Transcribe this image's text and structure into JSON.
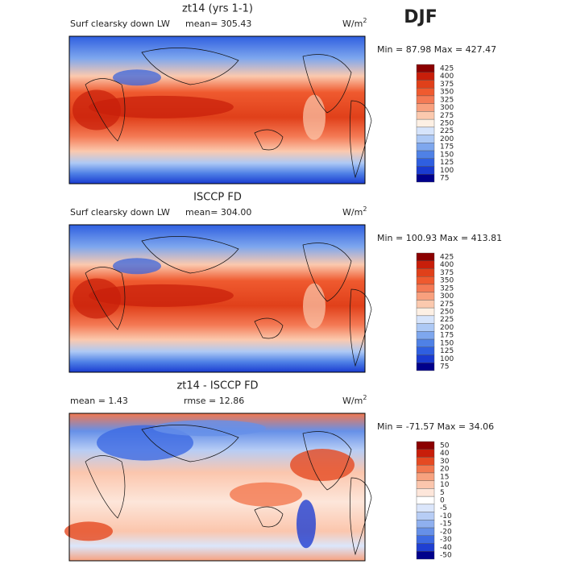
{
  "season": "DJF",
  "panels": [
    {
      "title": "zt14 (yrs 1-1)",
      "field": "Surf clearsky down LW",
      "stat1": "mean= 305.43",
      "stat2": null,
      "units": "W/m",
      "units_sup": "2",
      "minmax": "Min =  87.98 Max = 427.47",
      "colorbar": {
        "levels": [
          425,
          400,
          375,
          350,
          325,
          300,
          275,
          250,
          225,
          200,
          175,
          150,
          125,
          100,
          75
        ],
        "colors": [
          "#8b0000",
          "#c81e0a",
          "#e0401a",
          "#ef5a2f",
          "#f47a55",
          "#f8a07e",
          "#fbc9ae",
          "#fdf0e4",
          "#d6e4fb",
          "#adc9f5",
          "#7ea7ee",
          "#4f81e6",
          "#2f5fe0",
          "#1a3bd0",
          "#00008b"
        ]
      },
      "map": "absolute"
    },
    {
      "title": "ISCCP FD",
      "field": "Surf clearsky down LW",
      "stat1": "mean= 304.00",
      "stat2": null,
      "units": "W/m",
      "units_sup": "2",
      "minmax": "Min = 100.93 Max = 413.81",
      "colorbar": {
        "levels": [
          425,
          400,
          375,
          350,
          325,
          300,
          275,
          250,
          225,
          200,
          175,
          150,
          125,
          100,
          75
        ],
        "colors": [
          "#8b0000",
          "#c81e0a",
          "#e0401a",
          "#ef5a2f",
          "#f47a55",
          "#f8a07e",
          "#fbc9ae",
          "#fdf0e4",
          "#d6e4fb",
          "#adc9f5",
          "#7ea7ee",
          "#4f81e6",
          "#2f5fe0",
          "#1a3bd0",
          "#00008b"
        ]
      },
      "map": "absolute"
    },
    {
      "title": "zt14 - ISCCP FD",
      "field": null,
      "stat1": "mean =    1.43",
      "stat2": "rmse =   12.86",
      "units": "W/m",
      "units_sup": "2",
      "minmax": "Min = -71.57 Max =  34.06",
      "colorbar": {
        "levels": [
          50,
          40,
          30,
          20,
          15,
          10,
          5,
          0,
          -5,
          -10,
          -15,
          -20,
          -30,
          -40,
          -50
        ],
        "colors": [
          "#8b0000",
          "#c81e0a",
          "#e54a22",
          "#f2784f",
          "#f7a27f",
          "#fbc6ad",
          "#fde6da",
          "#ffffff",
          "#dbe6fb",
          "#b7cdf5",
          "#8fb0ef",
          "#6690e8",
          "#3d6ae2",
          "#1f3fd2",
          "#00008b"
        ]
      },
      "map": "difference"
    }
  ]
}
